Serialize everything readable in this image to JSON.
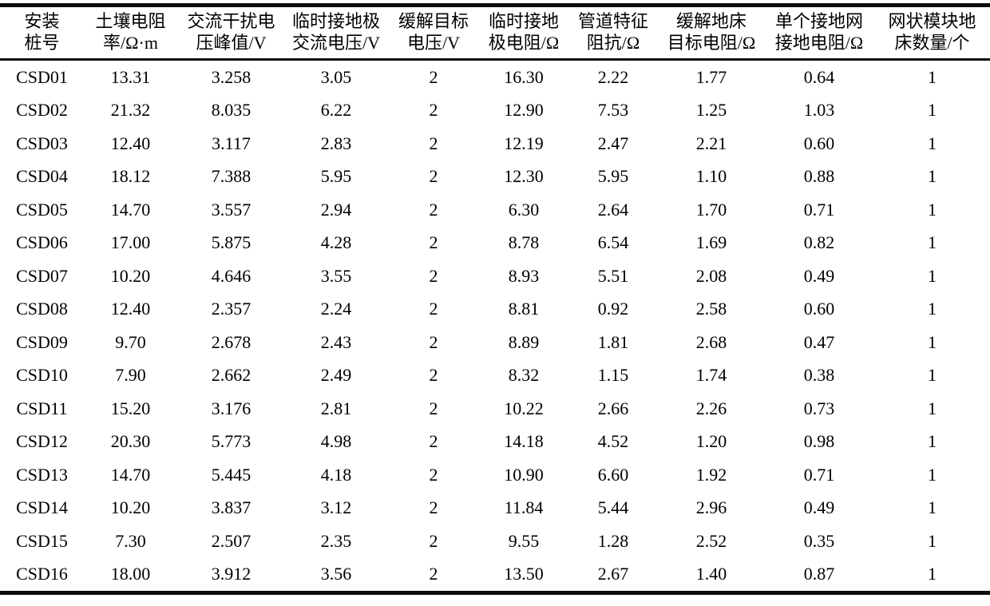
{
  "colors": {
    "text": "#000000",
    "background": "#ffffff",
    "rule": "#0b0b0b"
  },
  "table": {
    "columns": [
      {
        "id": "pile-number",
        "line1": "安装",
        "line2": "桩号"
      },
      {
        "id": "soil-resistivity",
        "line1": "土壤电阻",
        "line2": "率/Ω·m"
      },
      {
        "id": "ac-interference-peak-voltage",
        "line1": "交流干扰电",
        "line2": "压峰值/V"
      },
      {
        "id": "temp-ground-electrode-ac-voltage",
        "line1": "临时接地极",
        "line2": "交流电压/V"
      },
      {
        "id": "mitigation-target-voltage",
        "line1": "缓解目标",
        "line2": "电压/V"
      },
      {
        "id": "temp-ground-electrode-resistance",
        "line1": "临时接地",
        "line2": "极电阻/Ω"
      },
      {
        "id": "pipeline-characteristic-impedance",
        "line1": "管道特征",
        "line2": "阻抗/Ω"
      },
      {
        "id": "mitigation-bed-target-resistance",
        "line1": "缓解地床",
        "line2": "目标电阻/Ω"
      },
      {
        "id": "single-grid-ground-resistance",
        "line1": "单个接地网",
        "line2": "接地电阻/Ω"
      },
      {
        "id": "mesh-module-bed-count",
        "line1": "网状模块地",
        "line2": "床数量/个"
      }
    ],
    "rows": [
      [
        "CSD01",
        "13.31",
        "3.258",
        "3.05",
        "2",
        "16.30",
        "2.22",
        "1.77",
        "0.64",
        "1"
      ],
      [
        "CSD02",
        "21.32",
        "8.035",
        "6.22",
        "2",
        "12.90",
        "7.53",
        "1.25",
        "1.03",
        "1"
      ],
      [
        "CSD03",
        "12.40",
        "3.117",
        "2.83",
        "2",
        "12.19",
        "2.47",
        "2.21",
        "0.60",
        "1"
      ],
      [
        "CSD04",
        "18.12",
        "7.388",
        "5.95",
        "2",
        "12.30",
        "5.95",
        "1.10",
        "0.88",
        "1"
      ],
      [
        "CSD05",
        "14.70",
        "3.557",
        "2.94",
        "2",
        "6.30",
        "2.64",
        "1.70",
        "0.71",
        "1"
      ],
      [
        "CSD06",
        "17.00",
        "5.875",
        "4.28",
        "2",
        "8.78",
        "6.54",
        "1.69",
        "0.82",
        "1"
      ],
      [
        "CSD07",
        "10.20",
        "4.646",
        "3.55",
        "2",
        "8.93",
        "5.51",
        "2.08",
        "0.49",
        "1"
      ],
      [
        "CSD08",
        "12.40",
        "2.357",
        "2.24",
        "2",
        "8.81",
        "0.92",
        "2.58",
        "0.60",
        "1"
      ],
      [
        "CSD09",
        "9.70",
        "2.678",
        "2.43",
        "2",
        "8.89",
        "1.81",
        "2.68",
        "0.47",
        "1"
      ],
      [
        "CSD10",
        "7.90",
        "2.662",
        "2.49",
        "2",
        "8.32",
        "1.15",
        "1.74",
        "0.38",
        "1"
      ],
      [
        "CSD11",
        "15.20",
        "3.176",
        "2.81",
        "2",
        "10.22",
        "2.66",
        "2.26",
        "0.73",
        "1"
      ],
      [
        "CSD12",
        "20.30",
        "5.773",
        "4.98",
        "2",
        "14.18",
        "4.52",
        "1.20",
        "0.98",
        "1"
      ],
      [
        "CSD13",
        "14.70",
        "5.445",
        "4.18",
        "2",
        "10.90",
        "6.60",
        "1.92",
        "0.71",
        "1"
      ],
      [
        "CSD14",
        "10.20",
        "3.837",
        "3.12",
        "2",
        "11.84",
        "5.44",
        "2.96",
        "0.49",
        "1"
      ],
      [
        "CSD15",
        "7.30",
        "2.507",
        "2.35",
        "2",
        "9.55",
        "1.28",
        "2.52",
        "0.35",
        "1"
      ],
      [
        "CSD16",
        "18.00",
        "3.912",
        "3.56",
        "2",
        "13.50",
        "2.67",
        "1.40",
        "0.87",
        "1"
      ]
    ]
  }
}
